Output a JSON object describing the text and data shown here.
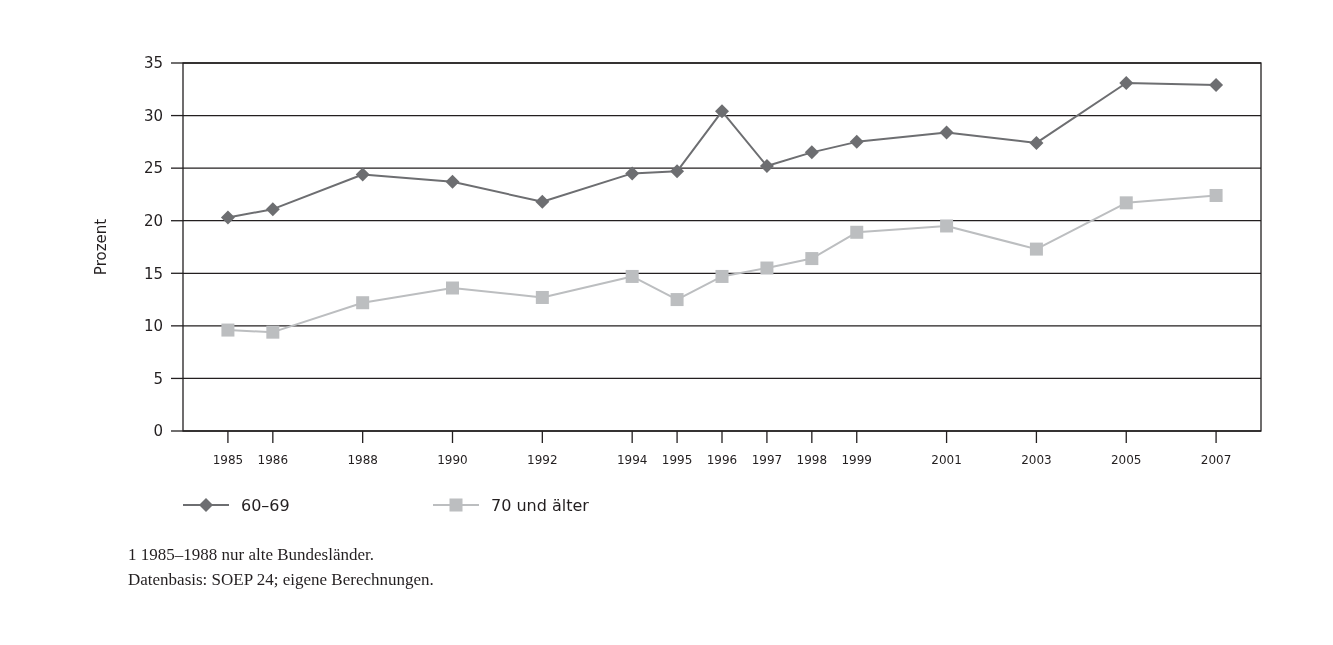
{
  "chart_data": {
    "type": "line",
    "ylabel": "Prozent",
    "x": [
      1985,
      1986,
      1988,
      1990,
      1992,
      1994,
      1995,
      1996,
      1997,
      1998,
      1999,
      2001,
      2003,
      2005,
      2007
    ],
    "series": [
      {
        "name": "60–69",
        "color": "#6d6e71",
        "marker": "diamond",
        "values": [
          20.3,
          21.1,
          24.4,
          23.7,
          21.8,
          24.5,
          24.7,
          30.4,
          25.2,
          26.5,
          27.5,
          28.4,
          27.4,
          33.1,
          32.9
        ]
      },
      {
        "name": "70 und älter",
        "color": "#bcbec0",
        "marker": "square",
        "values": [
          9.6,
          9.4,
          12.2,
          13.6,
          12.7,
          14.7,
          12.5,
          14.7,
          15.5,
          16.4,
          18.9,
          19.5,
          17.3,
          21.7,
          22.4
        ]
      }
    ],
    "xlim": [
      1984,
      2008
    ],
    "xticks": [
      1985,
      1986,
      1988,
      1990,
      1992,
      1994,
      1995,
      1996,
      1997,
      1998,
      1999,
      2001,
      2003,
      2005,
      2007
    ],
    "ylim": [
      0,
      35
    ],
    "yticks": [
      0,
      5,
      10,
      15,
      20,
      25,
      30,
      35
    ],
    "grid": "y",
    "legend": "bottom left",
    "annotations": [
      "1 1985–1988 nur alte Bundesländer.",
      "Datenbasis: SOEP 24; eigene Berechnungen."
    ]
  }
}
